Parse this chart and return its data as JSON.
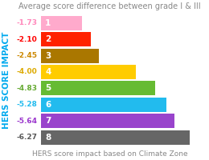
{
  "title": "Average score difference between grade I & III",
  "xlabel": "HERS score impact based on Climate Zone",
  "ylabel": "HERS SCORE IMPACT",
  "categories": [
    "1",
    "2",
    "3",
    "4",
    "5",
    "6",
    "7",
    "8"
  ],
  "values": [
    1.73,
    2.1,
    2.45,
    4.0,
    4.83,
    5.28,
    5.64,
    6.27
  ],
  "neg_labels": [
    "-1.73",
    "-2.10",
    "-2.45",
    "-4.00",
    "-4.83",
    "-5.28",
    "-5.64",
    "-6.27"
  ],
  "label_colors": [
    "#ff88bb",
    "#ff0000",
    "#cc8800",
    "#ddaa00",
    "#66aa33",
    "#22bbee",
    "#9933cc",
    "#555555"
  ],
  "bar_colors": [
    "#ffaacc",
    "#ff2200",
    "#aa7700",
    "#ffcc00",
    "#66bb33",
    "#22bbee",
    "#9944cc",
    "#666666"
  ],
  "background_color": "#ffffff",
  "title_color": "#888888",
  "ylabel_color": "#00aaee",
  "xlabel_color": "#888888",
  "bar_text_color": "#ffffff",
  "title_fontsize": 7.0,
  "xlabel_fontsize": 6.5,
  "ylabel_fontsize": 7.5,
  "bar_label_fontsize": 6.5,
  "cat_label_fontsize": 7.5
}
